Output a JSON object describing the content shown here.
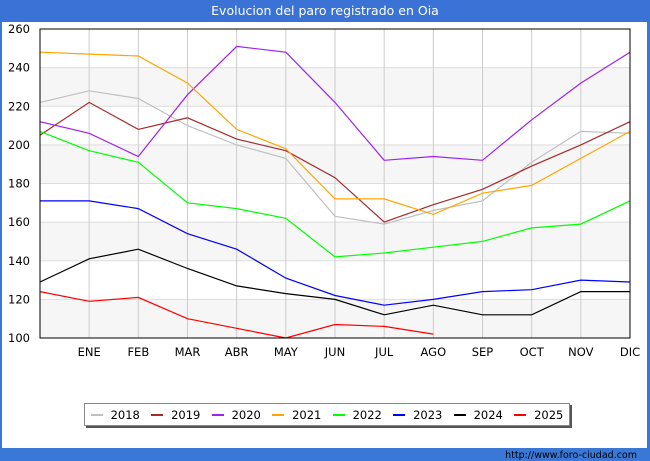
{
  "title": "Evolucion del paro registrado en Oia",
  "source": "http://www.foro-ciudad.com",
  "chart_data": {
    "type": "line",
    "title": "Evolucion del paro registrado en Oia",
    "xlabel": "",
    "ylabel": "",
    "x": [
      "",
      "ENE",
      "FEB",
      "MAR",
      "ABR",
      "MAY",
      "JUN",
      "JUL",
      "AGO",
      "SEP",
      "OCT",
      "NOV",
      "DIC"
    ],
    "yticks": [
      100,
      120,
      140,
      160,
      180,
      200,
      220,
      240,
      260
    ],
    "ylim": [
      100,
      260
    ],
    "grid": true,
    "legend_position": "bottom",
    "series": [
      {
        "name": "2018",
        "color": "#c0c0c0",
        "values": [
          222,
          228,
          224,
          210,
          200,
          193,
          163,
          159,
          166,
          171,
          191,
          207,
          206
        ]
      },
      {
        "name": "2019",
        "color": "#a52a2a",
        "values": [
          205,
          222,
          208,
          214,
          203,
          197,
          183,
          160,
          169,
          177,
          189,
          200,
          212
        ]
      },
      {
        "name": "2020",
        "color": "#a020f0",
        "values": [
          212,
          206,
          194,
          226,
          251,
          248,
          222,
          192,
          194,
          192,
          213,
          232,
          248
        ]
      },
      {
        "name": "2021",
        "color": "#ffa500",
        "values": [
          248,
          247,
          246,
          232,
          208,
          198,
          172,
          172,
          164,
          175,
          179,
          193,
          207
        ]
      },
      {
        "name": "2022",
        "color": "#00ff00",
        "values": [
          207,
          197,
          191,
          170,
          167,
          162,
          142,
          144,
          147,
          150,
          157,
          159,
          171
        ]
      },
      {
        "name": "2023",
        "color": "#0000ff",
        "values": [
          171,
          171,
          167,
          154,
          146,
          131,
          122,
          117,
          120,
          124,
          125,
          130,
          129
        ]
      },
      {
        "name": "2024",
        "color": "#000000",
        "values": [
          129,
          141,
          146,
          136,
          127,
          123,
          120,
          112,
          117,
          112,
          112,
          124,
          124
        ]
      },
      {
        "name": "2025",
        "color": "#ff0000",
        "values": [
          124,
          119,
          121,
          110,
          105,
          100,
          107,
          106,
          102
        ]
      }
    ]
  }
}
